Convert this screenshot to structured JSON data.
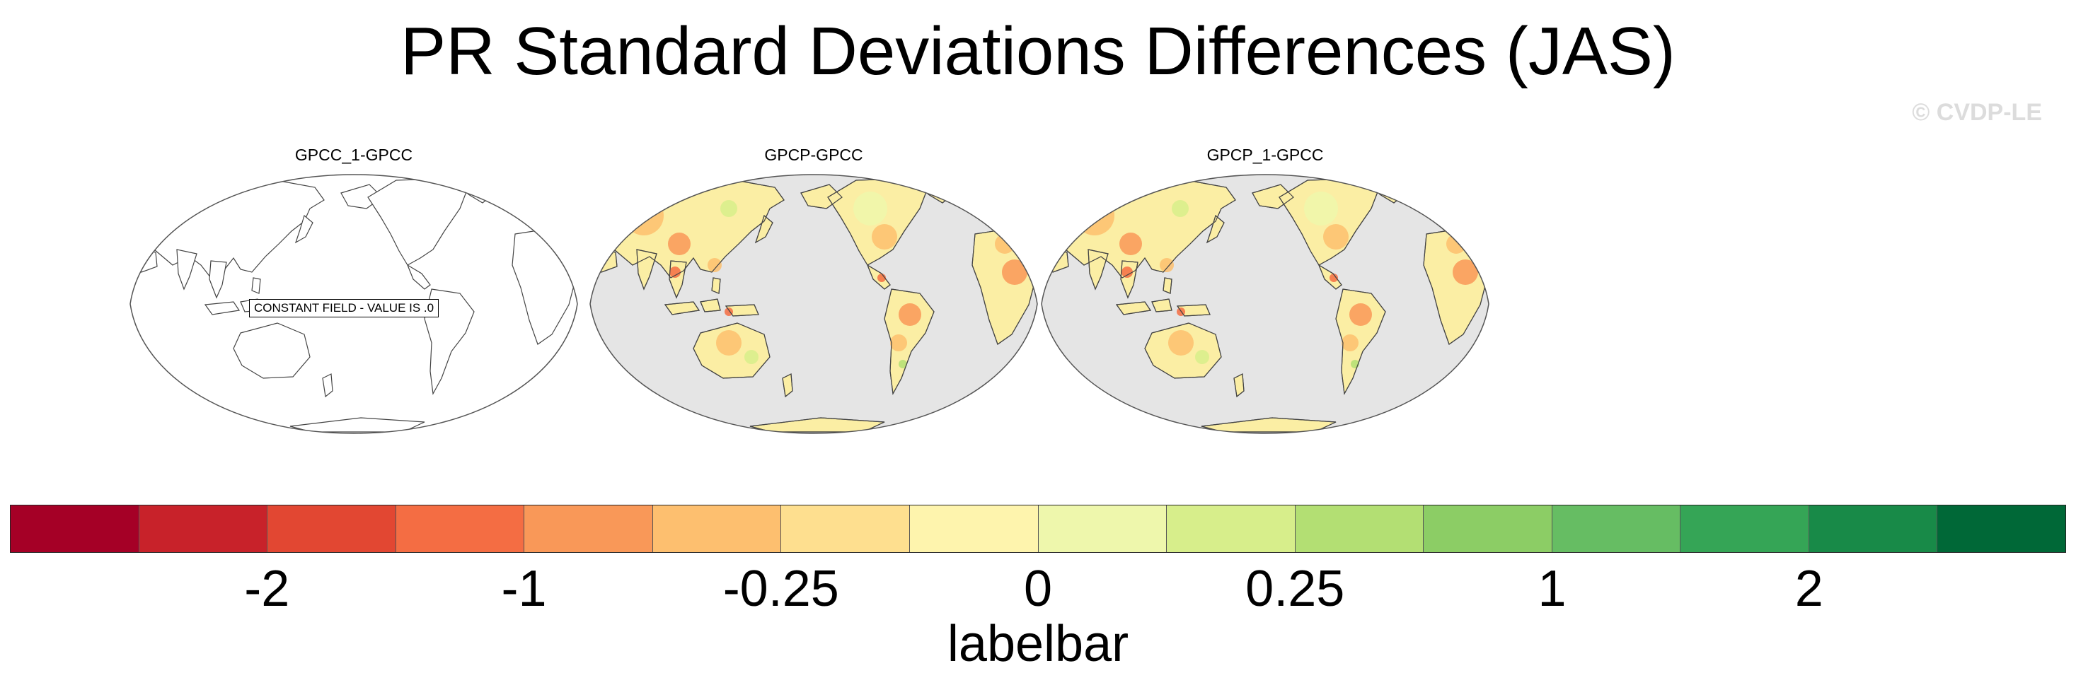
{
  "title": "PR Standard Deviations Differences (JAS)",
  "credit": "© CVDP-LE",
  "panels": [
    {
      "title": "GPCC_1-GPCC",
      "variant": "constant",
      "annotation": "CONSTANT FIELD - VALUE IS .0"
    },
    {
      "title": "GPCP-GPCC",
      "variant": "field"
    },
    {
      "title": "GPCP_1-GPCC",
      "variant": "field"
    }
  ],
  "labelbar": {
    "label": "labelbar",
    "colors": [
      "#a50026",
      "#c8222a",
      "#e24732",
      "#f46d43",
      "#f99858",
      "#fdbf6f",
      "#fedf8f",
      "#fef4ad",
      "#eef7ac",
      "#d7ee8b",
      "#b3df73",
      "#8ccd65",
      "#66bd63",
      "#35a556",
      "#188a48",
      "#006837"
    ],
    "ticks": [
      "-2",
      "-1",
      "-0.25",
      "0",
      "0.25",
      "1",
      "2"
    ]
  },
  "colors": {
    "ocean": "#e5e5e5",
    "land_base": "#fbeea4",
    "coast": "#444444"
  }
}
